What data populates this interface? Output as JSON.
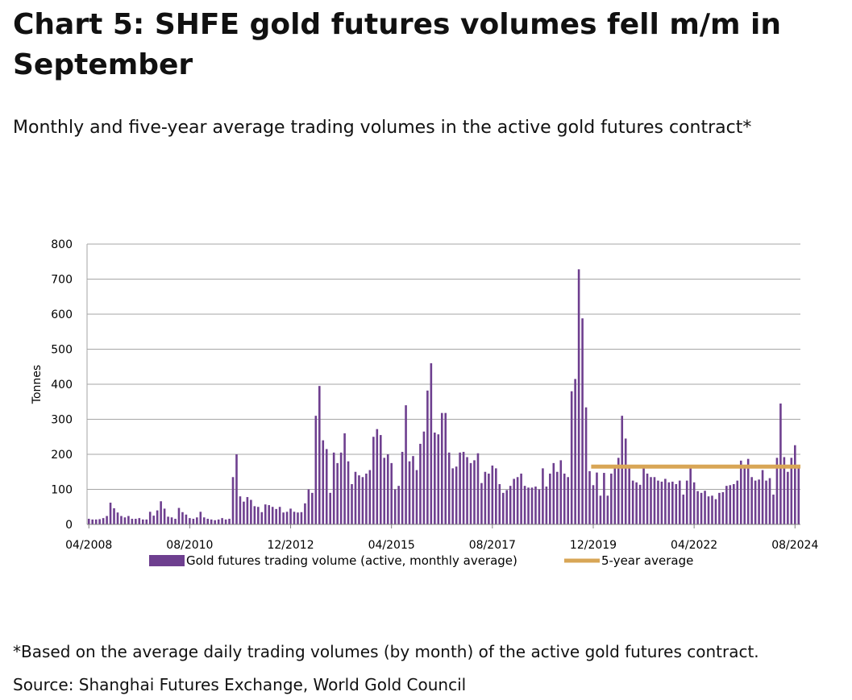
{
  "title": "Chart 5: SHFE gold futures volumes fell m/m in September",
  "subtitle": "Monthly and five-year average trading volumes in the active gold futures contract*",
  "footnote": "*Based on the average daily trading volumes (by month) of the active gold futures contract.",
  "source": "Source: Shanghai Futures Exchange, World Gold Council",
  "colors": {
    "bar": "#6e3f8f",
    "line": "#d8a656",
    "grid": "#a6a6a6",
    "axis_text": "#000000"
  },
  "chart_data": {
    "type": "bar",
    "title": "",
    "xlabel": "",
    "ylabel": "Tonnes",
    "ylim": [
      0,
      800
    ],
    "yticks": [
      0,
      100,
      200,
      300,
      400,
      500,
      600,
      700,
      800
    ],
    "grid": true,
    "legend_position": "bottom",
    "x_start": "04/2008",
    "x_end": "09/2024",
    "xtick_labels": [
      "04/2008",
      "08/2010",
      "12/2012",
      "04/2015",
      "08/2017",
      "12/2019",
      "04/2022",
      "08/2024"
    ],
    "series": [
      {
        "name": "Gold futures trading volume (active, monthly average)",
        "type": "bar",
        "values": [
          16,
          14,
          14,
          15,
          18,
          24,
          62,
          46,
          34,
          24,
          20,
          24,
          16,
          16,
          18,
          14,
          14,
          36,
          25,
          40,
          66,
          45,
          22,
          20,
          16,
          47,
          35,
          28,
          18,
          16,
          20,
          36,
          20,
          16,
          14,
          12,
          14,
          18,
          14,
          16,
          135,
          200,
          80,
          65,
          78,
          70,
          52,
          50,
          35,
          57,
          55,
          50,
          44,
          50,
          34,
          36,
          45,
          36,
          34,
          35,
          60,
          100,
          90,
          310,
          395,
          240,
          215,
          90,
          205,
          175,
          205,
          260,
          180,
          115,
          150,
          140,
          135,
          145,
          155,
          250,
          272,
          255,
          190,
          200,
          175,
          100,
          110,
          207,
          340,
          180,
          195,
          155,
          230,
          265,
          382,
          460,
          262,
          257,
          318,
          318,
          205,
          160,
          165,
          205,
          207,
          192,
          175,
          183,
          203,
          118,
          150,
          145,
          168,
          160,
          115,
          90,
          98,
          110,
          130,
          135,
          145,
          110,
          105,
          105,
          108,
          100,
          160,
          108,
          145,
          175,
          150,
          183,
          145,
          135,
          380,
          415,
          728,
          588,
          334,
          152,
          112,
          148,
          82,
          147,
          82,
          145,
          162,
          190,
          310,
          245,
          160,
          125,
          120,
          113,
          162,
          145,
          135,
          135,
          125,
          122,
          130,
          120,
          122,
          115,
          125,
          85,
          125,
          160,
          120,
          95,
          90,
          96,
          80,
          82,
          72,
          90,
          92,
          110,
          112,
          115,
          125,
          182,
          170,
          187,
          135,
          125,
          128,
          155,
          125,
          132,
          85,
          190,
          345,
          192,
          150,
          190,
          226,
          163
        ]
      },
      {
        "name": "5-year average",
        "type": "line",
        "start": "12/2019",
        "end": "09/2024",
        "value": 165
      }
    ]
  }
}
